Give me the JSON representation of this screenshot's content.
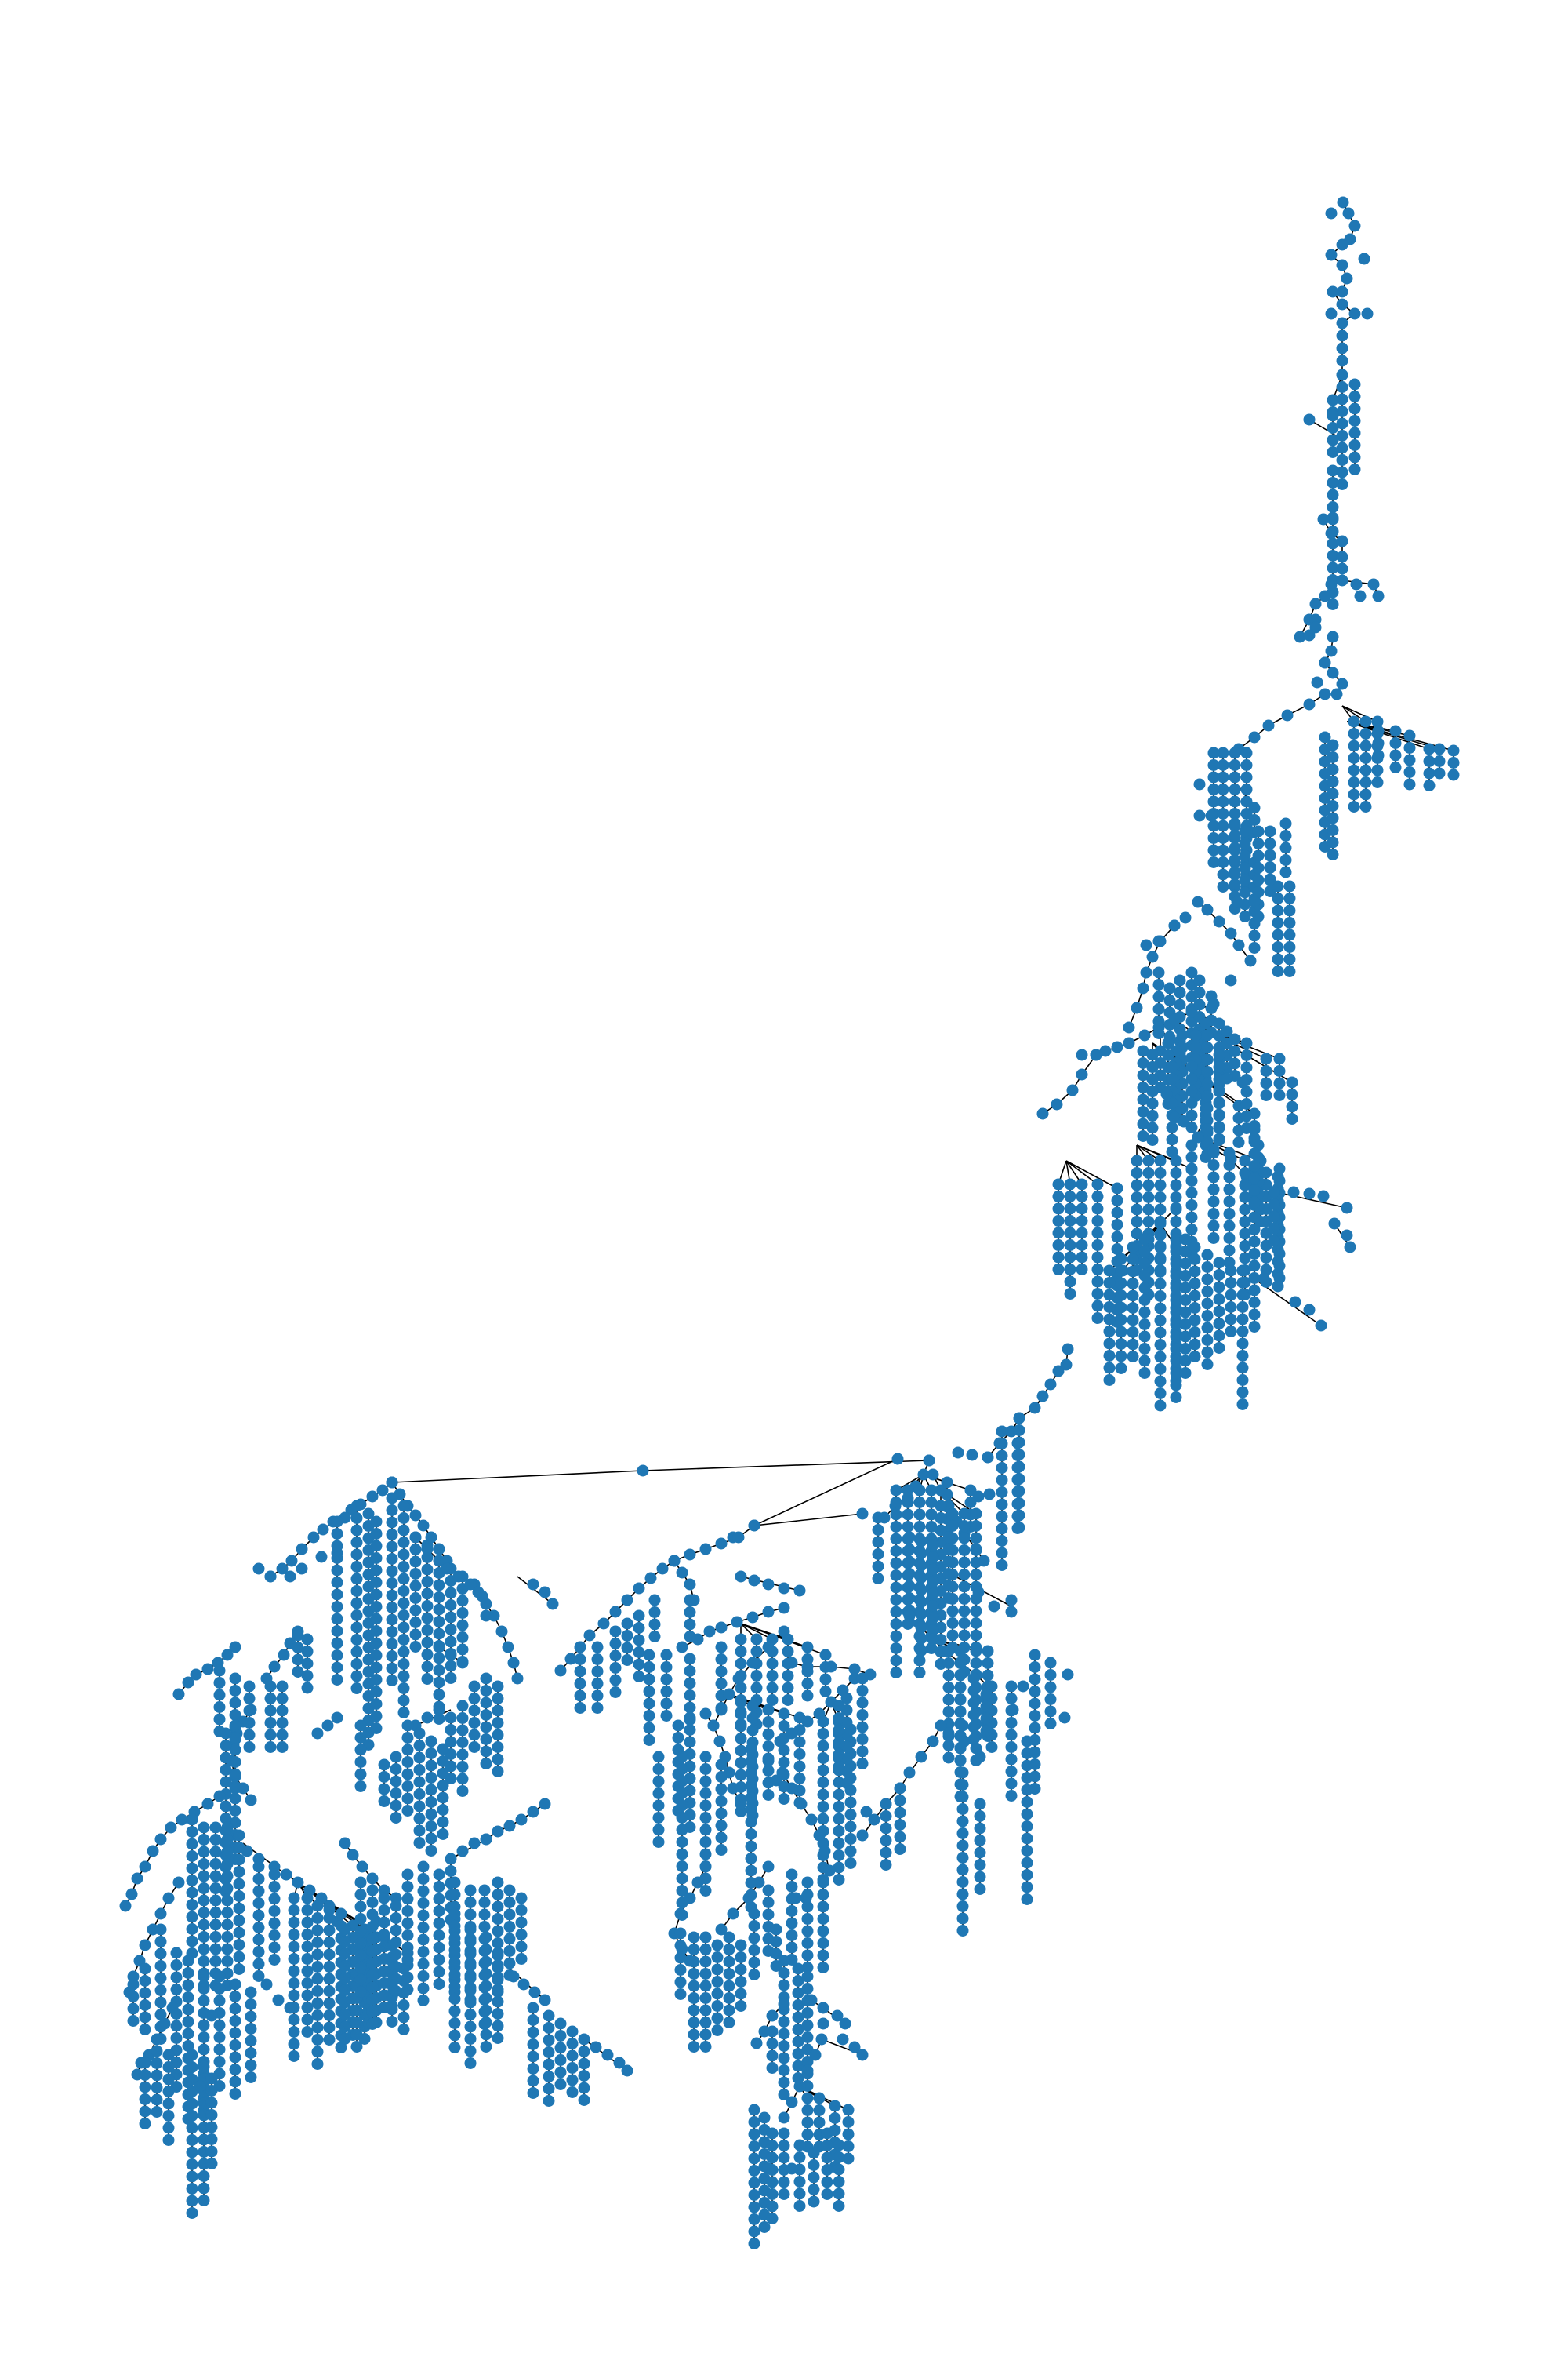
{
  "diagram": {
    "type": "tree-graph",
    "directed": true,
    "node_color": "#1f77b4",
    "edge_color": "#000000",
    "background": "#ffffff",
    "labels_shown": false,
    "title": ""
  }
}
